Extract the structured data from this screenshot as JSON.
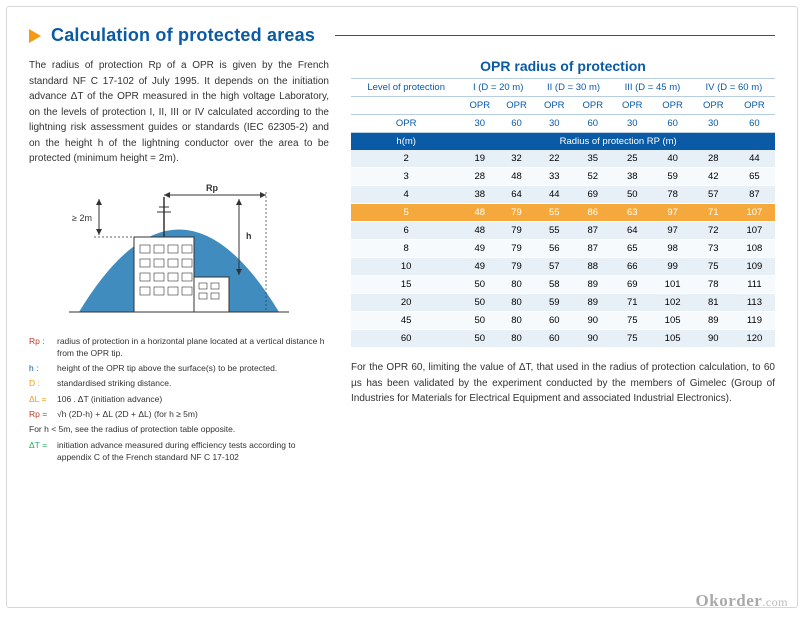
{
  "page_background": "#ffffff",
  "accent_color": "#0a5aa6",
  "bullet_color": "#f39c12",
  "header": {
    "title": "Calculation of protected areas"
  },
  "intro_text": "The radius of protection Rp of a OPR is given by the French standard NF C 17-102 of July 1995. It depends on the initiation advance ΔT of the OPR measured in the high voltage Laboratory, on the levels of protection I, II, III or IV calculated according to the lightning risk assessment guides or standards (IEC 62305-2) and on the height h of the lightning conductor over the area to be protected (minimum height = 2m).",
  "diagram": {
    "rp_label": "Rp",
    "h_label": "h",
    "min_label": "≥ 2m",
    "dome_color": "#2c7fb8",
    "building_fill": "#ffffff",
    "building_stroke": "#333333"
  },
  "legend": {
    "rp": {
      "label": "Rp :",
      "text": "radius of protection in a horizontal plane located at a vertical distance h from the OPR tip.",
      "color": "#c0392b"
    },
    "h": {
      "label": "h  :",
      "text": "height of the OPR tip above the surface(s) to be protected.",
      "color": "#0a5aa6"
    },
    "d": {
      "label": "D  :",
      "text": "standardised striking distance.",
      "color": "#f39c12"
    },
    "dl": {
      "label": "ΔL =",
      "text": "106 . ΔT (initiation advance)",
      "color": "#f39c12"
    },
    "rp_formula": {
      "label": "Rp =",
      "text": "√h (2D-h) + ΔL (2D + ΔL)        (for h ≥ 5m)",
      "color": "#c0392b"
    },
    "note_low_h": "For h < 5m, see the radius of protection table opposite.",
    "dt": {
      "label": "ΔT =",
      "text": "initiation advance measured during efficiency tests according to appendix C of the French standard NF C 17-102",
      "color": "#27ae60"
    }
  },
  "table": {
    "title": "OPR radius of protection",
    "title_fontsize": 14,
    "title_color": "#0a5aa6",
    "header_bg": "#0a5aa6",
    "header_fg": "#ffffff",
    "row_odd_bg": "#e8f0f7",
    "row_even_bg": "#f6fafd",
    "highlight_bg": "#f5a93d",
    "highlight_fg": "#ffffff",
    "level_label": "Level of protection",
    "levels": [
      "I (D = 20 m)",
      "II (D = 30 m)",
      "III (D = 45 m)",
      "IV (D = 60 m)"
    ],
    "opr_label": "OPR",
    "opr_sub": [
      "OPR",
      "OPR",
      "OPR",
      "OPR",
      "OPR",
      "OPR",
      "OPR",
      "OPR"
    ],
    "opr_vals": [
      "30",
      "60",
      "30",
      "60",
      "30",
      "60",
      "30",
      "60"
    ],
    "hm_label": "h(m)",
    "radius_label": "Radius of protection RP (m)",
    "rows": [
      {
        "h": "2",
        "v": [
          "19",
          "32",
          "22",
          "35",
          "25",
          "40",
          "28",
          "44"
        ],
        "hl": false
      },
      {
        "h": "3",
        "v": [
          "28",
          "48",
          "33",
          "52",
          "38",
          "59",
          "42",
          "65"
        ],
        "hl": false
      },
      {
        "h": "4",
        "v": [
          "38",
          "64",
          "44",
          "69",
          "50",
          "78",
          "57",
          "87"
        ],
        "hl": false
      },
      {
        "h": "5",
        "v": [
          "48",
          "79",
          "55",
          "86",
          "63",
          "97",
          "71",
          "107"
        ],
        "hl": true
      },
      {
        "h": "6",
        "v": [
          "48",
          "79",
          "55",
          "87",
          "64",
          "97",
          "72",
          "107"
        ],
        "hl": false
      },
      {
        "h": "8",
        "v": [
          "49",
          "79",
          "56",
          "87",
          "65",
          "98",
          "73",
          "108"
        ],
        "hl": false
      },
      {
        "h": "10",
        "v": [
          "49",
          "79",
          "57",
          "88",
          "66",
          "99",
          "75",
          "109"
        ],
        "hl": false
      },
      {
        "h": "15",
        "v": [
          "50",
          "80",
          "58",
          "89",
          "69",
          "101",
          "78",
          "111"
        ],
        "hl": false
      },
      {
        "h": "20",
        "v": [
          "50",
          "80",
          "59",
          "89",
          "71",
          "102",
          "81",
          "113"
        ],
        "hl": false
      },
      {
        "h": "45",
        "v": [
          "50",
          "80",
          "60",
          "90",
          "75",
          "105",
          "89",
          "119"
        ],
        "hl": false
      },
      {
        "h": "60",
        "v": [
          "50",
          "80",
          "60",
          "90",
          "75",
          "105",
          "90",
          "120"
        ],
        "hl": false
      }
    ]
  },
  "bottom_text": "For the OPR 60, limiting the value of ΔT, that used in the radius of protection calculation, to 60 µs has been validated by the experiment conducted by the members of Gimelec (Group of Industries for Materials for Electrical Equipment and associated Industrial Electronics).",
  "watermark": {
    "text": "Okorder",
    "suffix": ".com"
  }
}
